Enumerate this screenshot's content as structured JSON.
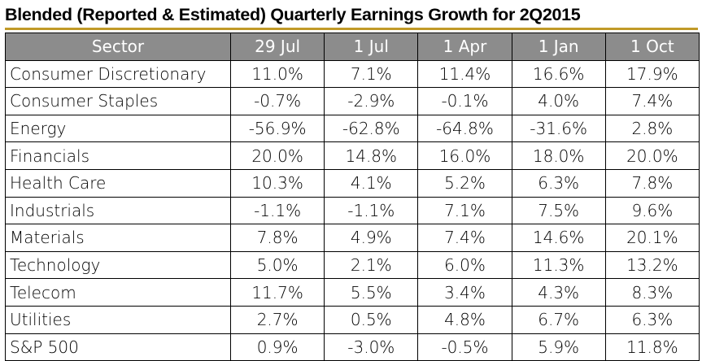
{
  "chart_data": {
    "type": "table",
    "title": "Blended (Reported & Estimated) Quarterly Earnings Growth for 2Q2015",
    "columns": [
      "Sector",
      "29 Jul",
      "1 Jul",
      "1 Apr",
      "1 Jan",
      "1 Oct"
    ],
    "rows": [
      {
        "sector": "Consumer Discretionary",
        "values": [
          "11.0%",
          "7.1%",
          "11.4%",
          "16.6%",
          "17.9%"
        ]
      },
      {
        "sector": "Consumer Staples",
        "values": [
          "-0.7%",
          "-2.9%",
          "-0.1%",
          "4.0%",
          "7.4%"
        ]
      },
      {
        "sector": "Energy",
        "values": [
          "-56.9%",
          "-62.8%",
          "-64.8%",
          "-31.6%",
          "2.8%"
        ]
      },
      {
        "sector": "Financials",
        "values": [
          "20.0%",
          "14.8%",
          "16.0%",
          "18.0%",
          "20.0%"
        ]
      },
      {
        "sector": "Health Care",
        "values": [
          "10.3%",
          "4.1%",
          "5.2%",
          "6.3%",
          "7.8%"
        ]
      },
      {
        "sector": "Industrials",
        "values": [
          "-1.1%",
          "-1.1%",
          "7.1%",
          "7.5%",
          "9.6%"
        ]
      },
      {
        "sector": "Materials",
        "values": [
          "7.8%",
          "4.9%",
          "7.4%",
          "14.6%",
          "20.1%"
        ]
      },
      {
        "sector": "Technology",
        "values": [
          "5.0%",
          "2.1%",
          "6.0%",
          "11.3%",
          "13.2%"
        ]
      },
      {
        "sector": "Telecom",
        "values": [
          "11.7%",
          "5.5%",
          "3.4%",
          "4.3%",
          "8.3%"
        ]
      },
      {
        "sector": "Utilities",
        "values": [
          "2.7%",
          "0.5%",
          "4.8%",
          "6.7%",
          "6.3%"
        ]
      },
      {
        "sector": "S&P 500",
        "values": [
          "0.9%",
          "-3.0%",
          "-0.5%",
          "5.9%",
          "11.8%"
        ]
      }
    ]
  },
  "style": {
    "header_bg": "#8c8c8c",
    "header_text": "#ffffff",
    "title_rule": "#c19a28",
    "grid_line": "#000000"
  }
}
